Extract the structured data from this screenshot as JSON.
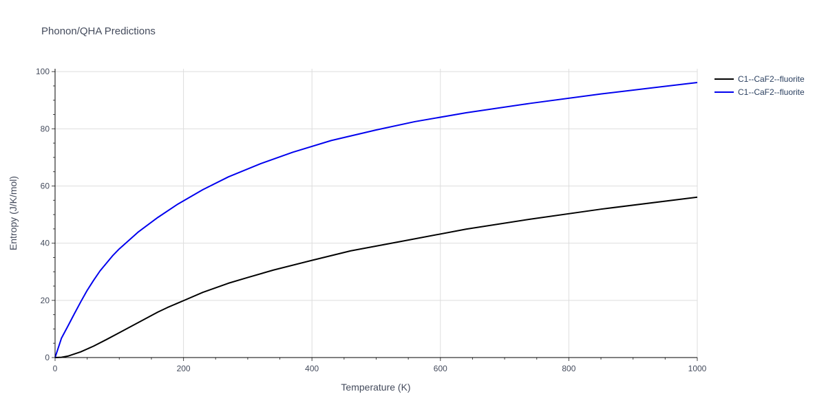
{
  "chart_data": {
    "type": "line",
    "title": "Phonon/QHA Predictions",
    "xlabel": "Temperature (K)",
    "ylabel": "Entropy (J/K/mol)",
    "xlim": [
      0,
      1000
    ],
    "ylim": [
      0,
      101
    ],
    "x_ticks": [
      0,
      200,
      400,
      600,
      800,
      1000
    ],
    "y_ticks": [
      0,
      20,
      40,
      60,
      80,
      100
    ],
    "grid": true,
    "legend_position": "top-right",
    "series": [
      {
        "name": "C1--CaF2--fluorite",
        "color": "#000000",
        "x": [
          0,
          10,
          20,
          40,
          60,
          80,
          100,
          130,
          160,
          175,
          200,
          230,
          270,
          300,
          340,
          400,
          460,
          550,
          640,
          740,
          850,
          1000
        ],
        "y": [
          0,
          0.1,
          0.5,
          2.0,
          4.0,
          6.3,
          8.7,
          12.3,
          15.9,
          17.5,
          19.9,
          22.8,
          26.0,
          28.0,
          30.6,
          34.0,
          37.3,
          41.1,
          44.9,
          48.4,
          51.9,
          56.1
        ]
      },
      {
        "name": "C1--CaF2--fluorite",
        "color": "#0000ee",
        "x": [
          0,
          10,
          20,
          30,
          40,
          50,
          60,
          70,
          80,
          90,
          100,
          130,
          160,
          190,
          230,
          270,
          320,
          370,
          430,
          500,
          560,
          640,
          740,
          850,
          1000
        ],
        "y": [
          0,
          6.8,
          11.0,
          15.3,
          19.5,
          23.5,
          27.0,
          30.3,
          33.0,
          35.7,
          38.0,
          44.0,
          49.0,
          53.5,
          58.7,
          63.2,
          67.8,
          71.8,
          75.9,
          79.6,
          82.5,
          85.6,
          88.9,
          92.2,
          96.2
        ]
      }
    ]
  }
}
